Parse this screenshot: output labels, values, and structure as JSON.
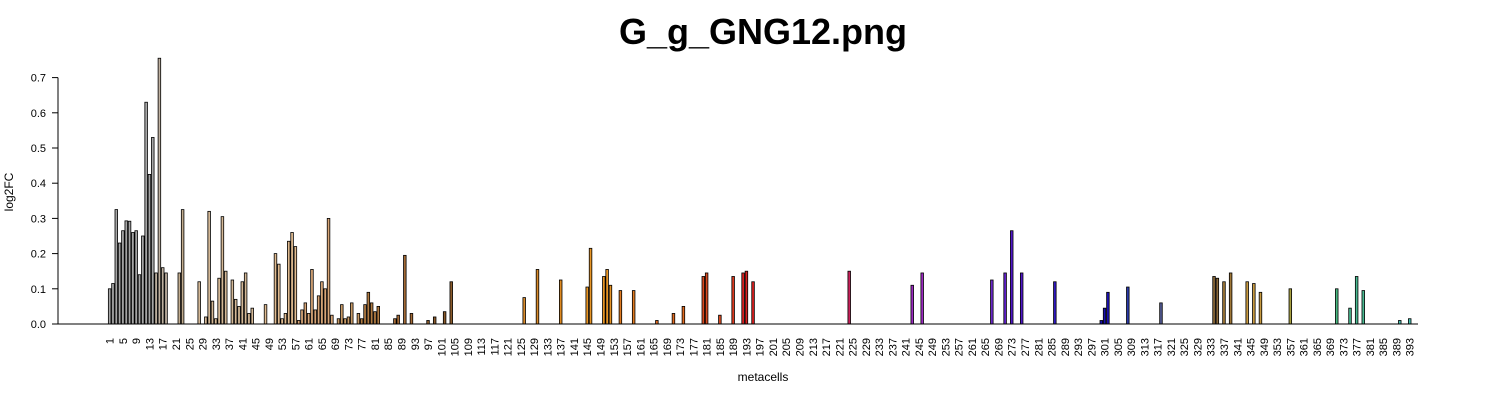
{
  "chart_data": {
    "type": "bar",
    "title": "G_g_GNG12.png",
    "xlabel": "metacells",
    "ylabel": "log2FC",
    "ylim": [
      0,
      0.75
    ],
    "yticks": [
      "0.0",
      "0.1",
      "0.2",
      "0.3",
      "0.4",
      "0.5",
      "0.6",
      "0.7"
    ],
    "xticks": [
      "1",
      "5",
      "9",
      "13",
      "17",
      "21",
      "25",
      "29",
      "33",
      "37",
      "41",
      "45",
      "49",
      "53",
      "57",
      "61",
      "65",
      "69",
      "73",
      "77",
      "81",
      "85",
      "89",
      "93",
      "97",
      "101",
      "105",
      "109",
      "113",
      "117",
      "121",
      "125",
      "129",
      "133",
      "137",
      "141",
      "145",
      "149",
      "153",
      "157",
      "161",
      "165",
      "169",
      "173",
      "177",
      "181",
      "185",
      "189",
      "193",
      "197",
      "201",
      "205",
      "209",
      "213",
      "217",
      "221",
      "225",
      "229",
      "233",
      "237",
      "241",
      "245",
      "249",
      "253",
      "257",
      "261",
      "265",
      "269",
      "273",
      "277",
      "281",
      "285",
      "289",
      "293",
      "297",
      "301",
      "305",
      "309",
      "313",
      "317",
      "321",
      "325",
      "329",
      "333",
      "337",
      "341",
      "345",
      "349",
      "353",
      "357",
      "361",
      "365",
      "369",
      "373",
      "377",
      "381",
      "385",
      "389",
      "393"
    ],
    "n_categories": 395,
    "bars": [
      {
        "x": 1,
        "value": 0.1,
        "color": "#a6a6a6"
      },
      {
        "x": 2,
        "value": 0.115,
        "color": "#a6a6a6"
      },
      {
        "x": 3,
        "value": 0.325,
        "color": "#a6a6a6"
      },
      {
        "x": 4,
        "value": 0.23,
        "color": "#a6a6a6"
      },
      {
        "x": 5,
        "value": 0.265,
        "color": "#a6a6a6"
      },
      {
        "x": 6,
        "value": 0.293,
        "color": "#a6a6a6"
      },
      {
        "x": 7,
        "value": 0.292,
        "color": "#a6a6a6"
      },
      {
        "x": 8,
        "value": 0.26,
        "color": "#a6a6a6"
      },
      {
        "x": 9,
        "value": 0.265,
        "color": "#a6a6a6"
      },
      {
        "x": 10,
        "value": 0.14,
        "color": "#a6a6a6"
      },
      {
        "x": 11,
        "value": 0.25,
        "color": "#a6a6a6"
      },
      {
        "x": 12,
        "value": 0.63,
        "color": "#a6a6a6"
      },
      {
        "x": 13,
        "value": 0.425,
        "color": "#a6a6a6"
      },
      {
        "x": 14,
        "value": 0.53,
        "color": "#a6a6a6"
      },
      {
        "x": 15,
        "value": 0.145,
        "color": "#bfb1a0"
      },
      {
        "x": 16,
        "value": 0.755,
        "color": "#bfb1a0"
      },
      {
        "x": 17,
        "value": 0.16,
        "color": "#bfb1a0"
      },
      {
        "x": 18,
        "value": 0.145,
        "color": "#bfb1a0"
      },
      {
        "x": 22,
        "value": 0.145,
        "color": "#c2ac8e"
      },
      {
        "x": 23,
        "value": 0.325,
        "color": "#c2ac8e"
      },
      {
        "x": 28,
        "value": 0.12,
        "color": "#d4b896"
      },
      {
        "x": 30,
        "value": 0.02,
        "color": "#d4b896"
      },
      {
        "x": 31,
        "value": 0.32,
        "color": "#d4b896"
      },
      {
        "x": 32,
        "value": 0.065,
        "color": "#d4b896"
      },
      {
        "x": 33,
        "value": 0.015,
        "color": "#d4b896"
      },
      {
        "x": 34,
        "value": 0.13,
        "color": "#d4b896"
      },
      {
        "x": 35,
        "value": 0.305,
        "color": "#d4b896"
      },
      {
        "x": 36,
        "value": 0.15,
        "color": "#d4b896"
      },
      {
        "x": 38,
        "value": 0.125,
        "color": "#d4b896"
      },
      {
        "x": 39,
        "value": 0.07,
        "color": "#d4b896"
      },
      {
        "x": 40,
        "value": 0.05,
        "color": "#d4b896"
      },
      {
        "x": 41,
        "value": 0.12,
        "color": "#d4b896"
      },
      {
        "x": 42,
        "value": 0.145,
        "color": "#d4b896"
      },
      {
        "x": 43,
        "value": 0.03,
        "color": "#d4b896"
      },
      {
        "x": 44,
        "value": 0.045,
        "color": "#d4b896"
      },
      {
        "x": 48,
        "value": 0.055,
        "color": "#e0bb90"
      },
      {
        "x": 51,
        "value": 0.2,
        "color": "#e0bb90"
      },
      {
        "x": 52,
        "value": 0.17,
        "color": "#e0bb90"
      },
      {
        "x": 53,
        "value": 0.015,
        "color": "#e0bb90"
      },
      {
        "x": 54,
        "value": 0.03,
        "color": "#e0bb90"
      },
      {
        "x": 55,
        "value": 0.235,
        "color": "#e0bb90"
      },
      {
        "x": 56,
        "value": 0.26,
        "color": "#e0bb90"
      },
      {
        "x": 57,
        "value": 0.22,
        "color": "#e0bb90"
      },
      {
        "x": 58,
        "value": 0.01,
        "color": "#d7a577"
      },
      {
        "x": 59,
        "value": 0.04,
        "color": "#d7a577"
      },
      {
        "x": 60,
        "value": 0.06,
        "color": "#d7a577"
      },
      {
        "x": 61,
        "value": 0.03,
        "color": "#d7a577"
      },
      {
        "x": 62,
        "value": 0.155,
        "color": "#d7a577"
      },
      {
        "x": 63,
        "value": 0.04,
        "color": "#d7a577"
      },
      {
        "x": 64,
        "value": 0.08,
        "color": "#d7a577"
      },
      {
        "x": 65,
        "value": 0.12,
        "color": "#d7a577"
      },
      {
        "x": 66,
        "value": 0.1,
        "color": "#d7a577"
      },
      {
        "x": 67,
        "value": 0.3,
        "color": "#d7a577"
      },
      {
        "x": 68,
        "value": 0.025,
        "color": "#d7a577"
      },
      {
        "x": 70,
        "value": 0.015,
        "color": "#c89a66"
      },
      {
        "x": 71,
        "value": 0.055,
        "color": "#c89a66"
      },
      {
        "x": 72,
        "value": 0.015,
        "color": "#c89a66"
      },
      {
        "x": 73,
        "value": 0.02,
        "color": "#c89a66"
      },
      {
        "x": 74,
        "value": 0.06,
        "color": "#c89a66"
      },
      {
        "x": 76,
        "value": 0.03,
        "color": "#c89a66"
      },
      {
        "x": 77,
        "value": 0.015,
        "color": "#b07b43"
      },
      {
        "x": 78,
        "value": 0.055,
        "color": "#b07b43"
      },
      {
        "x": 79,
        "value": 0.09,
        "color": "#b07b43"
      },
      {
        "x": 80,
        "value": 0.06,
        "color": "#b07b43"
      },
      {
        "x": 81,
        "value": 0.035,
        "color": "#b07b43"
      },
      {
        "x": 82,
        "value": 0.05,
        "color": "#b07b43"
      },
      {
        "x": 87,
        "value": 0.015,
        "color": "#a36a36"
      },
      {
        "x": 88,
        "value": 0.025,
        "color": "#a36a36"
      },
      {
        "x": 90,
        "value": 0.195,
        "color": "#a36a36"
      },
      {
        "x": 92,
        "value": 0.03,
        "color": "#a36a36"
      },
      {
        "x": 97,
        "value": 0.01,
        "color": "#8a5a2b"
      },
      {
        "x": 99,
        "value": 0.02,
        "color": "#8a5a2b"
      },
      {
        "x": 102,
        "value": 0.035,
        "color": "#8a5a2b"
      },
      {
        "x": 104,
        "value": 0.12,
        "color": "#8a5a2b"
      },
      {
        "x": 126,
        "value": 0.075,
        "color": "#d88a2a"
      },
      {
        "x": 130,
        "value": 0.155,
        "color": "#d88a2a"
      },
      {
        "x": 137,
        "value": 0.125,
        "color": "#e08a20"
      },
      {
        "x": 145,
        "value": 0.105,
        "color": "#e89525"
      },
      {
        "x": 146,
        "value": 0.215,
        "color": "#e89525"
      },
      {
        "x": 150,
        "value": 0.135,
        "color": "#e89525"
      },
      {
        "x": 151,
        "value": 0.155,
        "color": "#e89525"
      },
      {
        "x": 152,
        "value": 0.11,
        "color": "#e89525"
      },
      {
        "x": 155,
        "value": 0.095,
        "color": "#e07a20"
      },
      {
        "x": 159,
        "value": 0.095,
        "color": "#e07a20"
      },
      {
        "x": 166,
        "value": 0.01,
        "color": "#e06a20"
      },
      {
        "x": 171,
        "value": 0.03,
        "color": "#e06a20"
      },
      {
        "x": 174,
        "value": 0.05,
        "color": "#e06a20"
      },
      {
        "x": 180,
        "value": 0.135,
        "color": "#d84a20"
      },
      {
        "x": 181,
        "value": 0.145,
        "color": "#d84a20"
      },
      {
        "x": 185,
        "value": 0.025,
        "color": "#d84a20"
      },
      {
        "x": 189,
        "value": 0.135,
        "color": "#d83a20"
      },
      {
        "x": 192,
        "value": 0.145,
        "color": "#d82020"
      },
      {
        "x": 193,
        "value": 0.15,
        "color": "#d82020"
      },
      {
        "x": 195,
        "value": 0.12,
        "color": "#d82020"
      },
      {
        "x": 224,
        "value": 0.15,
        "color": "#c8205a"
      },
      {
        "x": 243,
        "value": 0.11,
        "color": "#9a28c0"
      },
      {
        "x": 246,
        "value": 0.145,
        "color": "#9a28c0"
      },
      {
        "x": 267,
        "value": 0.125,
        "color": "#6a28c8"
      },
      {
        "x": 271,
        "value": 0.145,
        "color": "#6020c8"
      },
      {
        "x": 273,
        "value": 0.265,
        "color": "#5018c8"
      },
      {
        "x": 276,
        "value": 0.145,
        "color": "#5018c8"
      },
      {
        "x": 286,
        "value": 0.12,
        "color": "#3018c0"
      },
      {
        "x": 300,
        "value": 0.01,
        "color": "#1a10b0"
      },
      {
        "x": 301,
        "value": 0.045,
        "color": "#1a10b0"
      },
      {
        "x": 302,
        "value": 0.09,
        "color": "#1a10b0"
      },
      {
        "x": 308,
        "value": 0.105,
        "color": "#2838a8"
      },
      {
        "x": 318,
        "value": 0.06,
        "color": "#505890"
      },
      {
        "x": 334,
        "value": 0.135,
        "color": "#8a6838"
      },
      {
        "x": 335,
        "value": 0.13,
        "color": "#8a6838"
      },
      {
        "x": 337,
        "value": 0.12,
        "color": "#a07838"
      },
      {
        "x": 339,
        "value": 0.145,
        "color": "#a07838"
      },
      {
        "x": 344,
        "value": 0.12,
        "color": "#c89a40"
      },
      {
        "x": 346,
        "value": 0.115,
        "color": "#c89a40"
      },
      {
        "x": 348,
        "value": 0.09,
        "color": "#c89a40"
      },
      {
        "x": 357,
        "value": 0.1,
        "color": "#a8a040"
      },
      {
        "x": 371,
        "value": 0.1,
        "color": "#48b880"
      },
      {
        "x": 375,
        "value": 0.045,
        "color": "#48b890"
      },
      {
        "x": 377,
        "value": 0.135,
        "color": "#48b890"
      },
      {
        "x": 379,
        "value": 0.095,
        "color": "#48b890"
      },
      {
        "x": 390,
        "value": 0.01,
        "color": "#48c0b0"
      },
      {
        "x": 393,
        "value": 0.015,
        "color": "#48c0b0"
      }
    ]
  }
}
